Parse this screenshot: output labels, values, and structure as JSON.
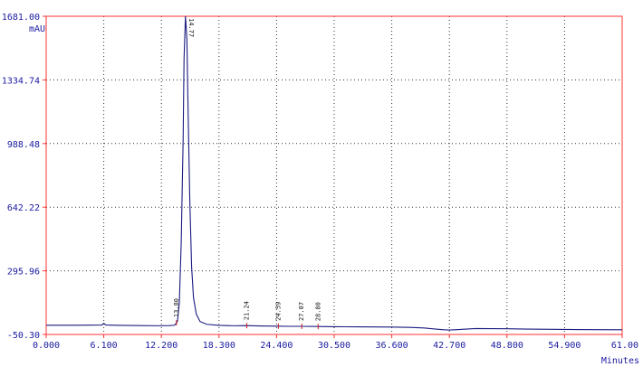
{
  "chart_data": {
    "type": "line",
    "ylabel": "mAU",
    "xlabel": "Minutes",
    "xlim": [
      0,
      61
    ],
    "ylim": [
      -50.3,
      1681.0
    ],
    "grid": true,
    "x_ticks": [
      0.0,
      6.1,
      12.2,
      18.3,
      24.4,
      30.5,
      36.6,
      42.7,
      48.8,
      54.9,
      61.0
    ],
    "x_tick_labels": [
      "0.000",
      "6.100",
      "12.200",
      "18.300",
      "24.400",
      "30.500",
      "36.600",
      "42.700",
      "48.800",
      "54.900",
      "61.00"
    ],
    "y_ticks": [
      -50.3,
      295.96,
      642.22,
      988.48,
      1334.74,
      1681.0
    ],
    "y_tick_labels": [
      "-50.30",
      "295.96",
      "642.22",
      "988.48",
      "1334.74",
      "1681.00"
    ],
    "series": [
      {
        "color": "#1a1a80",
        "x": [
          0,
          3,
          5.9,
          6.1,
          6.3,
          8,
          10,
          12,
          13,
          13.6,
          13.9,
          14.1,
          14.3,
          14.5,
          14.6,
          14.75,
          14.9,
          15.0,
          15.2,
          15.4,
          15.6,
          15.9,
          16.3,
          17,
          18.3,
          20,
          21.2,
          22.5,
          24.4,
          25.8,
          27.1,
          28.8,
          30.5,
          33,
          36.6,
          38.5,
          40,
          41,
          42.1,
          42.7,
          43.5,
          45.5,
          48.8,
          51,
          54.9,
          58,
          61
        ],
        "y": [
          0,
          0,
          1,
          10,
          1,
          -1,
          -2,
          -3,
          -2,
          0,
          20,
          120,
          450,
          1000,
          1450,
          1681,
          1560,
          1250,
          700,
          320,
          150,
          60,
          20,
          5,
          -1,
          -3,
          -2,
          -4,
          -5,
          -6,
          -6,
          -7,
          -8,
          -9,
          -10,
          -12,
          -15,
          -20,
          -25,
          -26,
          -24,
          -18,
          -19,
          -21,
          -23,
          -24,
          -25
        ]
      }
    ],
    "peak_labels": [
      {
        "x": 13.8,
        "text": "13.80"
      },
      {
        "x": 14.77,
        "text": "14.77"
      },
      {
        "x": 21.24,
        "text": "21.24"
      },
      {
        "x": 24.59,
        "text": "24.59"
      },
      {
        "x": 27.07,
        "text": "27.07"
      },
      {
        "x": 28.8,
        "text": "28.80"
      }
    ]
  }
}
